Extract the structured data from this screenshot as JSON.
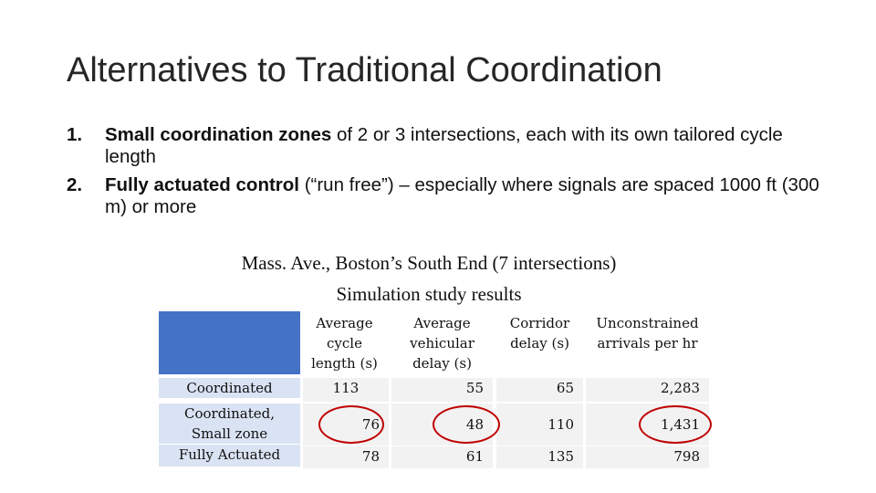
{
  "slide": {
    "title": "Alternatives to Traditional Coordination",
    "points": [
      {
        "num": "1.",
        "bold": "Small coordination zones",
        "rest": " of 2 or 3 intersections, each with its own tailored cycle length"
      },
      {
        "num": "2.",
        "bold": "Fully actuated control",
        "rest": " (“run free”) – especially where signals are spaced 1000 ft (300 m) or more"
      }
    ],
    "caption_line1": "Mass. Ave., Boston’s South End (7 intersections)",
    "caption_line2": "Simulation study results"
  },
  "table": {
    "headers": [
      {
        "line1": "Average",
        "line2": "cycle",
        "line3": "length (s)"
      },
      {
        "line1": "Average",
        "line2": "vehicular",
        "line3": "delay (s)"
      },
      {
        "line1": "Corridor",
        "line2": "delay (s)",
        "line3": ""
      },
      {
        "line1": "Unconstrained",
        "line2": "arrivals per hr",
        "line3": ""
      }
    ],
    "rows": [
      {
        "label1": "Coordinated",
        "label2": "",
        "values": [
          "113",
          "55",
          "65",
          "2,283"
        ]
      },
      {
        "label1": "Coordinated,",
        "label2": "Small zone",
        "values": [
          "76",
          "48",
          "110",
          "1,431"
        ]
      },
      {
        "label1": "Fully Actuated",
        "label2": "",
        "values": [
          "78",
          "61",
          "135",
          "798"
        ]
      }
    ],
    "colors": {
      "header_blue": "#4472c4",
      "label_fill": "#dae3f3",
      "cell_fill": "#f2f2f2",
      "circle": "#c00000"
    }
  }
}
